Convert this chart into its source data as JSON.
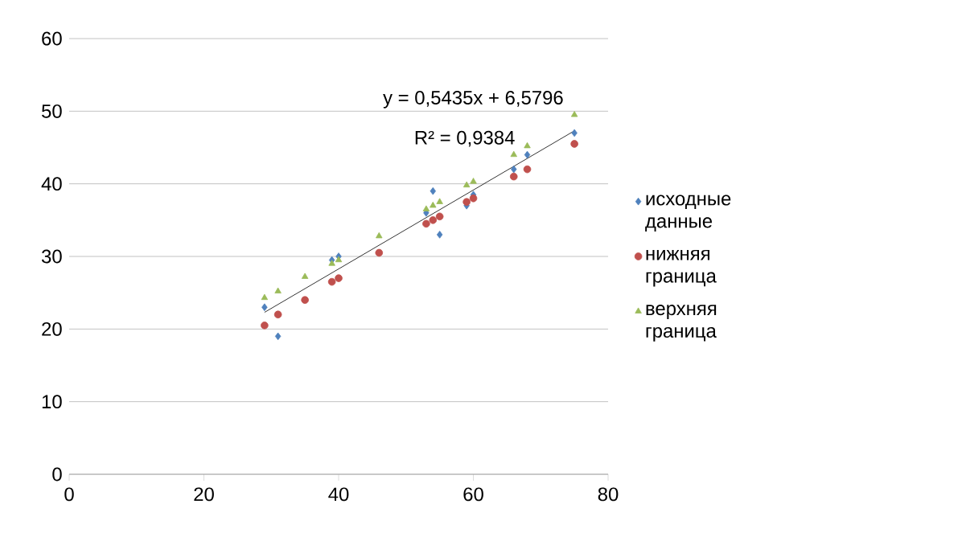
{
  "chart_data": {
    "type": "scatter",
    "xlim": [
      0,
      80
    ],
    "ylim": [
      0,
      60
    ],
    "xticks": [
      0,
      20,
      40,
      60,
      80
    ],
    "yticks": [
      0,
      10,
      20,
      30,
      40,
      50,
      60
    ],
    "grid": "y",
    "legend": "right",
    "annotations": [
      "y = 0,5435x + 6,5796",
      "R² = 0,9384"
    ],
    "series": [
      {
        "name": "исходные данные",
        "color": "#4f81bd",
        "marker": "diamond",
        "x": [
          29,
          31,
          35,
          39,
          40,
          46,
          53,
          54,
          55,
          59,
          60,
          66,
          68,
          75
        ],
        "values": [
          23,
          19,
          null,
          29.5,
          30,
          null,
          36,
          39,
          33,
          37,
          38.5,
          42,
          44,
          47
        ]
      },
      {
        "name": "нижняя граница",
        "color": "#c0504d",
        "marker": "circle",
        "x": [
          29,
          31,
          35,
          39,
          40,
          46,
          53,
          54,
          55,
          59,
          60,
          66,
          68,
          75
        ],
        "values": [
          20.5,
          22,
          24,
          26.5,
          27,
          30.5,
          34.5,
          35,
          35.5,
          37.5,
          38,
          41,
          42,
          45.5
        ]
      },
      {
        "name": "верхняя граница",
        "color": "#9bbb59",
        "marker": "triangle",
        "x": [
          29,
          31,
          35,
          39,
          40,
          46,
          53,
          54,
          55,
          59,
          60,
          66,
          68,
          75
        ],
        "values": [
          24.3,
          25.2,
          27.2,
          29,
          29.5,
          32.8,
          36.5,
          37,
          37.5,
          39.8,
          40.3,
          44,
          45.2,
          49.5
        ]
      },
      {
        "type": "line",
        "color": "#000000",
        "marker": "none",
        "x": [
          29,
          75
        ],
        "values": [
          22.3,
          47.3
        ]
      }
    ]
  }
}
